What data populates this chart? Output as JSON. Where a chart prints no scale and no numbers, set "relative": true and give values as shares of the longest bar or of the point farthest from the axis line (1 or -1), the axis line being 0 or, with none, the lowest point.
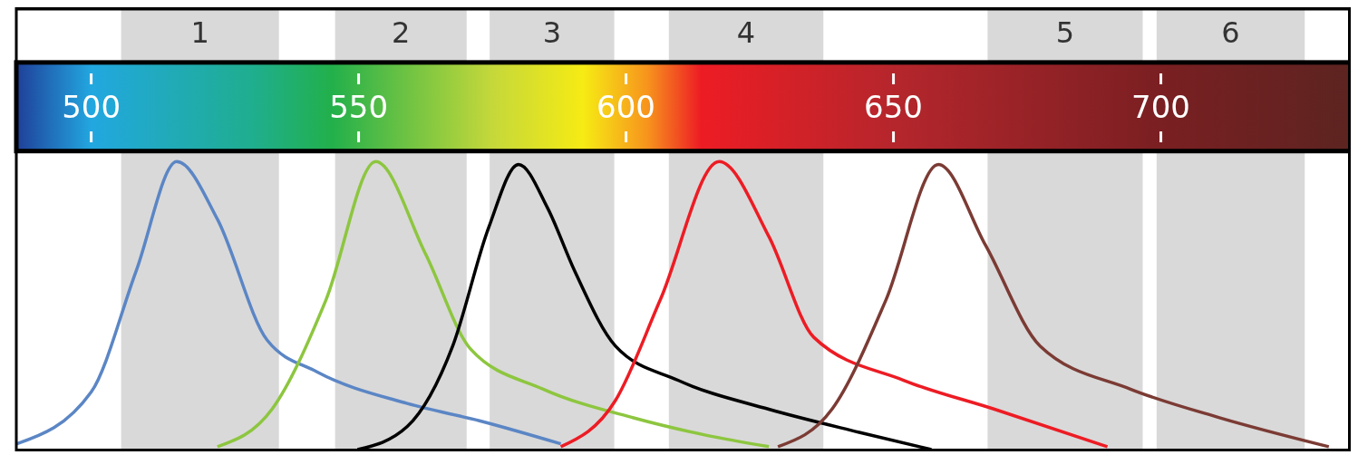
{
  "chart_data": {
    "type": "line",
    "relative": true,
    "xlim": [
      486,
      735.5
    ],
    "xticks": [
      500,
      550,
      600,
      650,
      700
    ],
    "bands": [
      {
        "axis": "x",
        "from": 505.6,
        "to": 535.1,
        "label": "1",
        "color": "#d9d9d9"
      },
      {
        "axis": "x",
        "from": 545.6,
        "to": 570.2,
        "label": "2",
        "color": "#d9d9d9"
      },
      {
        "axis": "x",
        "from": 574.5,
        "to": 597.8,
        "label": "3",
        "color": "#d9d9d9"
      },
      {
        "axis": "x",
        "from": 608,
        "to": 636.9,
        "label": "4",
        "color": "#d9d9d9"
      },
      {
        "axis": "x",
        "from": 667.6,
        "to": 696.6,
        "label": "5",
        "color": "#d9d9d9"
      },
      {
        "axis": "x",
        "from": 699.2,
        "to": 726.9,
        "label": "6",
        "color": "#d9d9d9"
      }
    ],
    "series": [
      {
        "color": "#5b86c5",
        "x": [
          486.1,
          500,
          508.4,
          516.0,
          523.6,
          532.9,
          542.2,
          559.1,
          572.6,
          587.8
        ],
        "values": [
          0.02,
          0.2,
          0.62,
          1,
          0.8,
          0.38,
          0.27,
          0.16,
          0.1,
          0.02
        ]
      },
      {
        "color": "#8dc63f",
        "x": [
          523.6,
          533.8,
          543.9,
          553.2,
          562.5,
          570.9,
          584.5,
          601.4,
          614.9,
          626.7
        ],
        "values": [
          0.01,
          0.14,
          0.52,
          1,
          0.68,
          0.35,
          0.21,
          0.11,
          0.05,
          0.01
        ]
      },
      {
        "color": "#000000",
        "x": [
          549.8,
          559.1,
          567.6,
          574.3,
          579.9,
          585.3,
          590.4,
          598.0,
          609.8,
          626.7,
          643.6,
          657.1
        ],
        "values": [
          0,
          0.08,
          0.36,
          0.77,
          0.99,
          0.84,
          0.62,
          0.36,
          0.24,
          0.14,
          0.06,
          0
        ]
      },
      {
        "color": "#ed1c24",
        "x": [
          587.8,
          598.0,
          606.4,
          617.4,
          626.7,
          635.1,
          652.0,
          668.9,
          690.0
        ],
        "values": [
          0.01,
          0.17,
          0.52,
          1,
          0.74,
          0.39,
          0.24,
          0.14,
          0.01
        ]
      },
      {
        "color": "#7b3b34",
        "x": [
          628.4,
          638.5,
          648.6,
          658.4,
          667.2,
          677.4,
          694.3,
          711.1,
          731.4
        ],
        "values": [
          0.01,
          0.14,
          0.52,
          0.99,
          0.71,
          0.36,
          0.21,
          0.11,
          0.01
        ]
      }
    ]
  }
}
